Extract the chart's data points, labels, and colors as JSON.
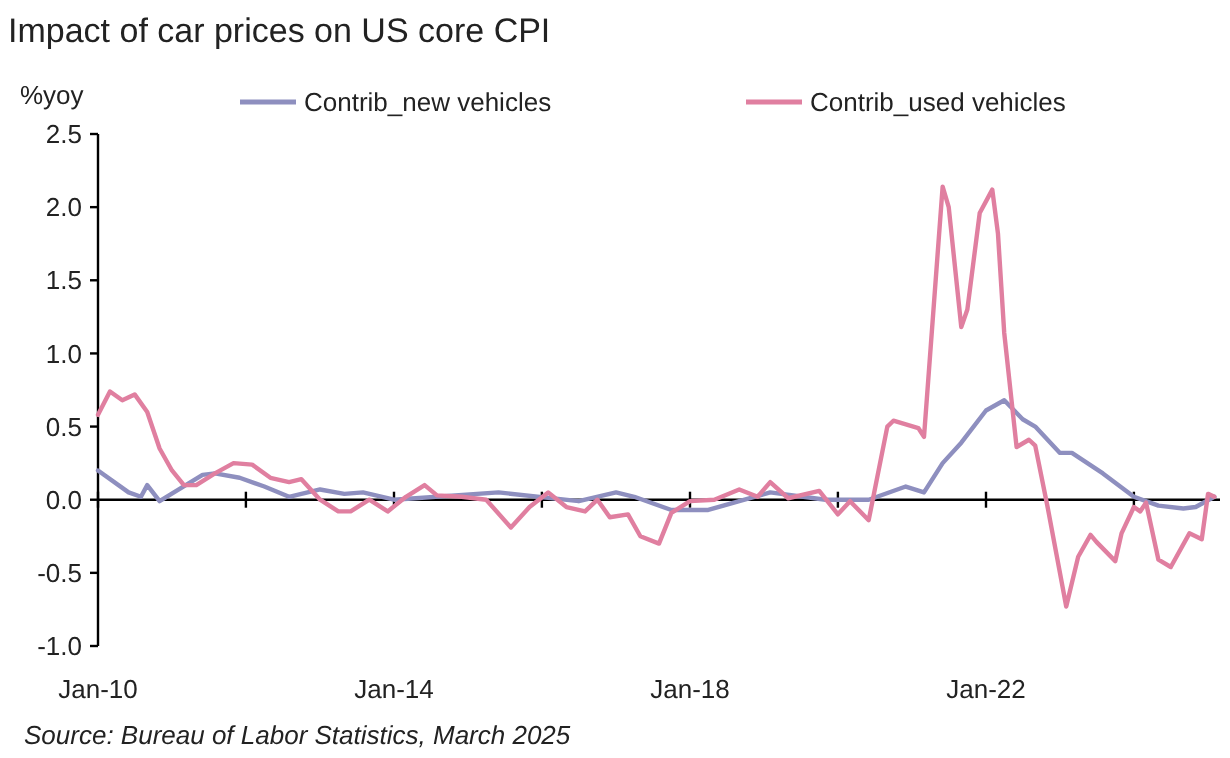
{
  "chart_data": {
    "type": "line",
    "title": "Impact of car prices on US core CPI",
    "ylabel": "%yoy",
    "annotations": [
      "Source: Bureau of Labor Statistics, March 2025"
    ],
    "xlim": [
      "2010-01",
      "2025-03"
    ],
    "xticks": [
      {
        "value": "2010-01",
        "label": "Jan-10"
      },
      {
        "value": "2012-01",
        "label": null
      },
      {
        "value": "2014-01",
        "label": "Jan-14"
      },
      {
        "value": "2016-01",
        "label": null
      },
      {
        "value": "2018-01",
        "label": "Jan-18"
      },
      {
        "value": "2020-01",
        "label": null
      },
      {
        "value": "2022-01",
        "label": "Jan-22"
      },
      {
        "value": "2024-01",
        "label": null
      }
    ],
    "ylim": [
      -1.0,
      2.5
    ],
    "yticks": [
      {
        "value": -1.0,
        "label": "-1.0"
      },
      {
        "value": -0.5,
        "label": "-0.5"
      },
      {
        "value": 0,
        "label": "0.0"
      },
      {
        "value": 0.5,
        "label": "0.5"
      },
      {
        "value": 1.0,
        "label": "1.0"
      },
      {
        "value": 1.5,
        "label": "1.5"
      },
      {
        "value": 2.0,
        "label": "2.0"
      },
      {
        "value": 2.5,
        "label": "2.5"
      }
    ],
    "legend": "top",
    "marker": "none",
    "line_style": "solid",
    "series": [
      {
        "name": "Contrib_new vehicles",
        "color": "#8e8fbf",
        "x": [
          "2010-01",
          "2010-06",
          "2010-08",
          "2010-09",
          "2010-11",
          "2011-06",
          "2011-08",
          "2011-12",
          "2012-04",
          "2012-08",
          "2013-01",
          "2013-05",
          "2013-08",
          "2014-01",
          "2015-06",
          "2016-07",
          "2017-01",
          "2017-04",
          "2017-10",
          "2018-04",
          "2018-09",
          "2019-02",
          "2019-11",
          "2020-06",
          "2020-12",
          "2021-03",
          "2021-06",
          "2021-09",
          "2022-01",
          "2022-04",
          "2022-07",
          "2022-09",
          "2023-01",
          "2023-03",
          "2023-08",
          "2024-01",
          "2024-05",
          "2024-09",
          "2024-11",
          "2025-02"
        ],
        "values": [
          0.2,
          0.05,
          0.02,
          0.1,
          -0.01,
          0.17,
          0.18,
          0.15,
          0.09,
          0.02,
          0.07,
          0.04,
          0.05,
          0.0,
          0.05,
          -0.01,
          0.05,
          0.02,
          -0.07,
          -0.07,
          -0.01,
          0.05,
          0.0,
          0.0,
          0.09,
          0.05,
          0.25,
          0.39,
          0.61,
          0.68,
          0.55,
          0.5,
          0.32,
          0.32,
          0.18,
          0.02,
          -0.04,
          -0.06,
          -0.05,
          0.02
        ]
      },
      {
        "name": "Contrib_used vehicles",
        "color": "#e07fa0",
        "x": [
          "2010-01",
          "2010-03",
          "2010-05",
          "2010-07",
          "2010-09",
          "2010-11",
          "2011-01",
          "2011-03",
          "2011-05",
          "2011-08",
          "2011-11",
          "2012-02",
          "2012-05",
          "2012-08",
          "2012-10",
          "2013-01",
          "2013-04",
          "2013-06",
          "2013-09",
          "2013-12",
          "2014-03",
          "2014-06",
          "2014-08",
          "2014-12",
          "2015-04",
          "2015-08",
          "2015-11",
          "2016-02",
          "2016-05",
          "2016-08",
          "2016-10",
          "2016-12",
          "2017-03",
          "2017-05",
          "2017-08",
          "2017-10",
          "2018-01",
          "2018-05",
          "2018-09",
          "2018-12",
          "2019-02",
          "2019-05",
          "2019-10",
          "2020-01",
          "2020-03",
          "2020-06",
          "2020-09",
          "2020-10",
          "2021-02",
          "2021-03",
          "2021-06",
          "2021-07",
          "2021-09",
          "2021-10",
          "2021-12",
          "2022-02",
          "2022-03",
          "2022-04",
          "2022-06",
          "2022-08",
          "2022-09",
          "2022-11",
          "2023-01",
          "2023-02",
          "2023-04",
          "2023-06",
          "2023-07",
          "2023-10",
          "2023-11",
          "2024-01",
          "2024-02",
          "2024-03",
          "2024-05",
          "2024-07",
          "2024-10",
          "2024-12",
          "2025-01",
          "2025-02"
        ],
        "values": [
          0.58,
          0.74,
          0.68,
          0.72,
          0.6,
          0.35,
          0.2,
          0.1,
          0.1,
          0.18,
          0.25,
          0.24,
          0.15,
          0.12,
          0.14,
          0.0,
          -0.08,
          -0.08,
          0.0,
          -0.08,
          0.02,
          0.1,
          0.03,
          0.02,
          0.0,
          -0.19,
          -0.05,
          0.05,
          -0.05,
          -0.08,
          0.0,
          -0.12,
          -0.1,
          -0.25,
          -0.3,
          -0.09,
          -0.01,
          0.0,
          0.07,
          0.02,
          0.12,
          0.01,
          0.06,
          -0.1,
          -0.01,
          -0.14,
          0.5,
          0.54,
          0.49,
          0.43,
          2.14,
          2.0,
          1.18,
          1.3,
          1.96,
          2.12,
          1.82,
          1.14,
          0.36,
          0.41,
          0.37,
          -0.05,
          -0.5,
          -0.73,
          -0.39,
          -0.24,
          -0.29,
          -0.42,
          -0.23,
          -0.05,
          -0.08,
          -0.02,
          -0.41,
          -0.46,
          -0.23,
          -0.27,
          0.04,
          0.02
        ]
      }
    ]
  }
}
